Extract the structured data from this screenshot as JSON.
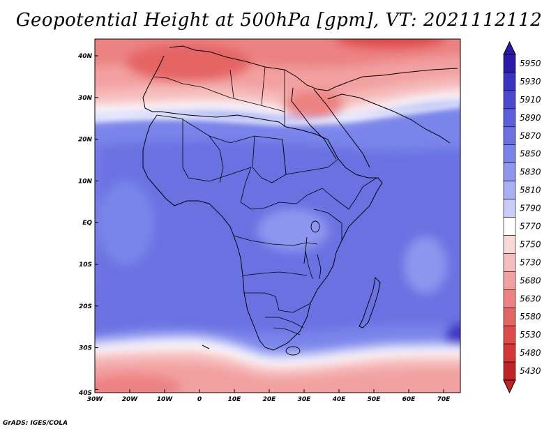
{
  "title": "Geopotential Height at 500hPa [gpm], VT: 2021112112",
  "credit": "GrADS: IGES/COLA",
  "map": {
    "type": "filled-contour-map",
    "region": "Africa",
    "lon_range": [
      -30,
      75
    ],
    "lat_range": [
      -40,
      45
    ],
    "y_ticks": [
      "40N",
      "30N",
      "20N",
      "10N",
      "EQ",
      "10S",
      "20S",
      "30S",
      "40S"
    ],
    "x_ticks": [
      "30W",
      "20W",
      "10W",
      "0",
      "10E",
      "20E",
      "30E",
      "40E",
      "50E",
      "60E",
      "70E"
    ],
    "colorbar": {
      "labels": [
        "5950",
        "5930",
        "5910",
        "5890",
        "5870",
        "5850",
        "5830",
        "5810",
        "5790",
        "5770",
        "5750",
        "5730",
        "5680",
        "5630",
        "5580",
        "5530",
        "5480",
        "5430"
      ],
      "colors": [
        "#2a1aa8",
        "#3a33c0",
        "#4a4ad0",
        "#5a5fdb",
        "#6a72e2",
        "#7a85ea",
        "#8d97ef",
        "#a8b0f3",
        "#c9cdf8",
        "#ffffff",
        "#fad8d8",
        "#f6bdbd",
        "#f2a0a0",
        "#ec8282",
        "#e56565",
        "#de4b4b",
        "#d43737",
        "#c02424"
      ]
    }
  }
}
